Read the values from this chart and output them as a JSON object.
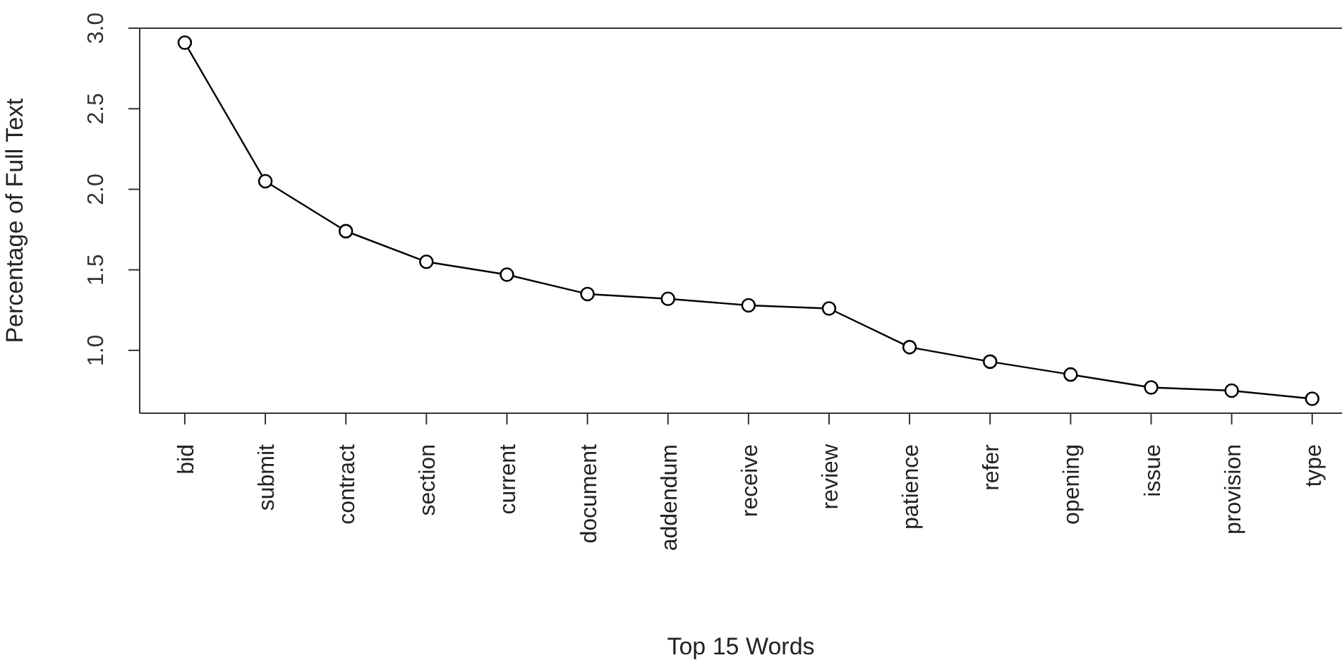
{
  "chart_data": {
    "type": "line",
    "xlabel": "Top 15 Words",
    "ylabel": "Percentage of Full Text",
    "categories": [
      "bid",
      "submit",
      "contract",
      "section",
      "current",
      "document",
      "addendum",
      "receive",
      "review",
      "patience",
      "refer",
      "opening",
      "issue",
      "provision",
      "type"
    ],
    "series": [
      {
        "color": "#000000",
        "values": [
          2.91,
          2.05,
          1.74,
          1.55,
          1.47,
          1.35,
          1.32,
          1.28,
          1.26,
          1.02,
          0.93,
          0.85,
          0.77,
          0.75,
          0.7
        ]
      }
    ],
    "ylim": [
      0.61,
      3.0
    ],
    "yticks": [
      {
        "value": 1,
        "label": "1.0"
      },
      1.5,
      {
        "value": 2,
        "label": "2.0"
      },
      2.5,
      {
        "value": 3,
        "label": "3.0"
      }
    ],
    "grid": false,
    "legend": false,
    "marker": "circle",
    "line_style": "solid"
  }
}
